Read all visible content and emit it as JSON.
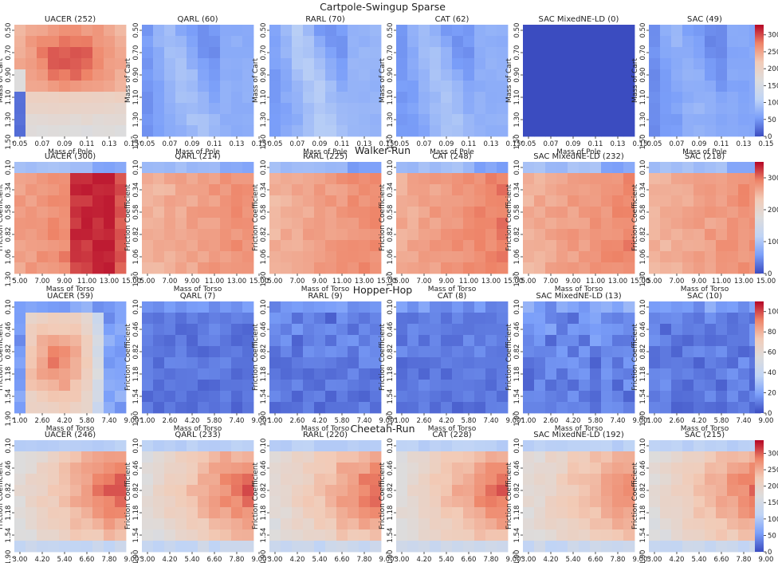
{
  "colormap": {
    "name": "coolwarm",
    "stops": [
      "#3b4cc0",
      "#7b9ff9",
      "#c0d4f5",
      "#dddcdc",
      "#f2cbb7",
      "#ee8468",
      "#b40426"
    ]
  },
  "chart_data": [
    {
      "type": "heatmap",
      "title": "Cartpole-Swingup Sparse",
      "xlabel": "Mass of Pole",
      "ylabel": "Mass of Cart",
      "xticks": [
        "0.05",
        "0.07",
        "0.09",
        "0.11",
        "0.13",
        "0.15"
      ],
      "yticks": [
        "0.50",
        "0.70",
        "0.90",
        "1.10",
        "1.30",
        "1.50"
      ],
      "colorbar": {
        "min": 0,
        "max": 330,
        "ticks": [
          0,
          50,
          100,
          150,
          200,
          250,
          300
        ]
      },
      "panels": [
        {
          "method": "UACER",
          "score": 252,
          "label": "UACER (252)",
          "pattern": "cart_uacer"
        },
        {
          "method": "QARL",
          "score": 60,
          "label": "QARL (60)",
          "pattern": "cart_band"
        },
        {
          "method": "RARL",
          "score": 70,
          "label": "RARL (70)",
          "pattern": "cart_band"
        },
        {
          "method": "CAT",
          "score": 62,
          "label": "CAT (62)",
          "pattern": "cart_band"
        },
        {
          "method": "SAC MixedNE-LD",
          "score": 0,
          "label": "SAC MixedNE-LD (0)",
          "pattern": "flat"
        },
        {
          "method": "SAC",
          "score": 49,
          "label": "SAC (49)",
          "pattern": "cart_band"
        }
      ]
    },
    {
      "type": "heatmap",
      "title": "Walker-Run",
      "xlabel": "Mass of Torso",
      "ylabel": "Friction Coefficient",
      "xticks": [
        "5.00",
        "7.00",
        "9.00",
        "11.00",
        "13.00",
        "15.00"
      ],
      "yticks": [
        "0.10",
        "0.34",
        "0.58",
        "0.82",
        "1.06",
        "1.30"
      ],
      "colorbar": {
        "min": 0,
        "max": 350,
        "ticks": [
          0,
          100,
          200,
          300
        ]
      },
      "panels": [
        {
          "method": "UACER",
          "score": 300,
          "label": "UACER (300)",
          "pattern": "walker"
        },
        {
          "method": "QARL",
          "score": 214,
          "label": "QARL (214)",
          "pattern": "walker"
        },
        {
          "method": "RARL",
          "score": 225,
          "label": "RARL (225)",
          "pattern": "walker"
        },
        {
          "method": "CAT",
          "score": 248,
          "label": "CAT (248)",
          "pattern": "walker"
        },
        {
          "method": "SAC MixedNE-LD",
          "score": 232,
          "label": "SAC MixedNE-LD (232)",
          "pattern": "walker"
        },
        {
          "method": "SAC",
          "score": 218,
          "label": "SAC (218)",
          "pattern": "walker"
        }
      ]
    },
    {
      "type": "heatmap",
      "title": "Hopper-Hop",
      "xlabel": "Mass of Torso",
      "ylabel": "Friction Coefficient",
      "xticks": [
        "1.00",
        "2.60",
        "4.20",
        "5.80",
        "7.40",
        "9.00"
      ],
      "yticks": [
        "0.10",
        "0.46",
        "0.82",
        "1.18",
        "1.54",
        "1.90"
      ],
      "colorbar": {
        "min": 0,
        "max": 110,
        "ticks": [
          0,
          20,
          40,
          60,
          80,
          100
        ]
      },
      "panels": [
        {
          "method": "UACER",
          "score": 59,
          "label": "UACER (59)",
          "pattern": "hopper_uacer"
        },
        {
          "method": "QARL",
          "score": 7,
          "label": "QARL (7)",
          "pattern": "noise"
        },
        {
          "method": "RARL",
          "score": 9,
          "label": "RARL (9)",
          "pattern": "noise"
        },
        {
          "method": "CAT",
          "score": 8,
          "label": "CAT (8)",
          "pattern": "noise"
        },
        {
          "method": "SAC MixedNE-LD",
          "score": 13,
          "label": "SAC MixedNE-LD (13)",
          "pattern": "noise"
        },
        {
          "method": "SAC",
          "score": 10,
          "label": "SAC (10)",
          "pattern": "noise"
        }
      ]
    },
    {
      "type": "heatmap",
      "title": "Cheetah-Run",
      "xlabel": "Mass of Torso",
      "ylabel": "Friction Coefficient",
      "xticks": [
        "3.00",
        "4.20",
        "5.40",
        "6.60",
        "7.80",
        "9.00"
      ],
      "yticks": [
        "0.10",
        "0.46",
        "0.82",
        "1.18",
        "1.54",
        "1.90"
      ],
      "colorbar": {
        "min": 0,
        "max": 340,
        "ticks": [
          0,
          50,
          100,
          150,
          200,
          250,
          300
        ]
      },
      "panels": [
        {
          "method": "UACER",
          "score": 246,
          "label": "UACER (246)",
          "pattern": "cheetah"
        },
        {
          "method": "QARL",
          "score": 233,
          "label": "QARL (233)",
          "pattern": "cheetah"
        },
        {
          "method": "RARL",
          "score": 220,
          "label": "RARL (220)",
          "pattern": "cheetah"
        },
        {
          "method": "CAT",
          "score": 228,
          "label": "CAT (228)",
          "pattern": "cheetah"
        },
        {
          "method": "SAC MixedNE-LD",
          "score": 192,
          "label": "SAC MixedNE-LD (192)",
          "pattern": "cheetah"
        },
        {
          "method": "SAC",
          "score": 215,
          "label": "SAC (215)",
          "pattern": "cheetah"
        }
      ]
    }
  ]
}
